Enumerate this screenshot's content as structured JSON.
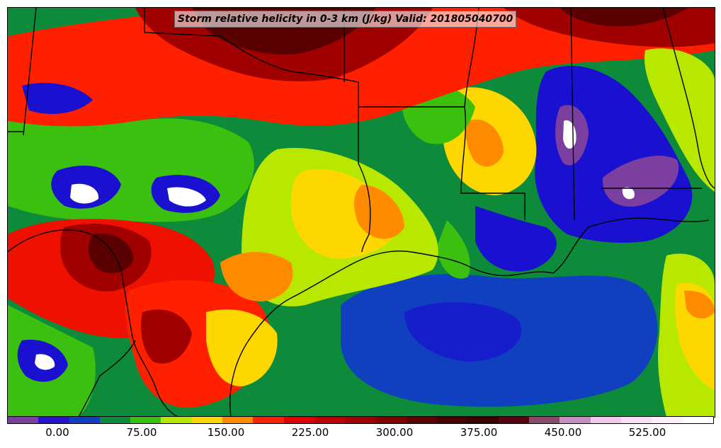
{
  "title": "Storm relative helicity in 0-3 km (J/kg) Valid: 201805040700",
  "colorbar": {
    "colors": [
      "#7b3fa0",
      "#2a10d0",
      "#1040c0",
      "#0d8a3a",
      "#3cc010",
      "#b8e800",
      "#ffd700",
      "#ff8c00",
      "#ff2000",
      "#e00000",
      "#c00000",
      "#a00000",
      "#800000",
      "#600000",
      "#4a0000",
      "#3a0000",
      "#5a0010",
      "#8b4a6a",
      "#c890c0",
      "#f0c8f0",
      "#f8e0f8",
      "#fdf0fd",
      "#ffffff"
    ],
    "tick_labels": [
      "0.00",
      "75.00",
      "150.00",
      "225.00",
      "300.00",
      "375.00",
      "450.00",
      "525.00"
    ]
  },
  "palette": {
    "purple": "#7b3fa0",
    "blue": "#1a10d0",
    "deepblue": "#1040c0",
    "green": "#0d8a3a",
    "lightgreen": "#3cc010",
    "yellowgreen": "#b8e800",
    "yellow": "#ffd700",
    "orange": "#ff8c00",
    "red": "#ee1000",
    "darkred": "#a00000",
    "maroon": "#5a0000",
    "white": "#ffffff"
  }
}
